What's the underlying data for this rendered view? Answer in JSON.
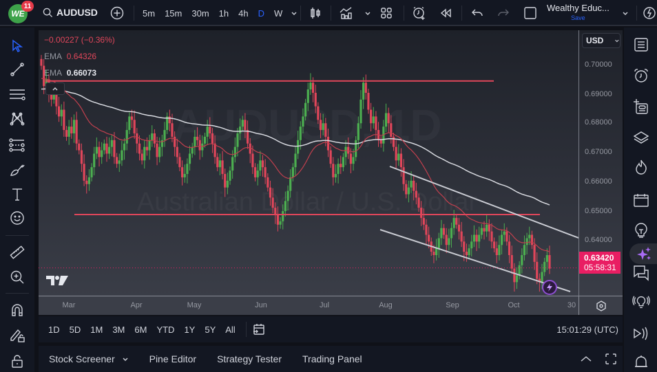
{
  "header": {
    "notification_count": "11",
    "symbol": "AUDUSD",
    "timeframes": [
      "5m",
      "15m",
      "30m",
      "1h",
      "4h",
      "D",
      "W"
    ],
    "active_timeframe": "D",
    "layout_name": "Wealthy Educ...",
    "save_label": "Save"
  },
  "legend": {
    "change": "−0.00227 (−0.36%)",
    "ema1_label": "EMA",
    "ema1_value": "0.64326",
    "ema2_label": "EMA",
    "ema2_value": "0.66073"
  },
  "price_axis": {
    "currency": "USD",
    "labels": [
      "0.70000",
      "0.69000",
      "0.68000",
      "0.67000",
      "0.66000",
      "0.65000",
      "0.64000"
    ],
    "current_price": "0.63420",
    "countdown": "05:58:31"
  },
  "time_axis": {
    "labels": [
      "Mar",
      "Apr",
      "May",
      "Jun",
      "Jul",
      "Aug",
      "Sep",
      "Oct",
      "30"
    ]
  },
  "range_bar": {
    "ranges": [
      "1D",
      "5D",
      "1M",
      "3M",
      "6M",
      "YTD",
      "1Y",
      "5Y",
      "All"
    ],
    "clock": "15:01:29 (UTC)"
  },
  "bottom_bar": {
    "tabs": [
      "Stock Screener",
      "Pine Editor",
      "Strategy Tester",
      "Trading Panel"
    ]
  },
  "watermark": {
    "line1": "AUDUSD, 1D",
    "line2": "Australian Dollar / U.S. Dollar"
  },
  "colors": {
    "up": "#4caf50",
    "down": "#e0465a",
    "ema_fast": "#c2404e",
    "ema_slow": "#d8dae0",
    "level_line": "#e0465a",
    "channel": "#c9cbd2",
    "accent": "#2962ff",
    "price_tag": "#e91e63"
  },
  "chart_data": {
    "type": "candlestick",
    "title": "AUDUSD, 1D",
    "ylim": [
      0.626,
      0.7045
    ],
    "horizontal_levels": [
      0.6895,
      0.65
    ],
    "channel_upper": [
      [
        0.657,
        "Aug"
      ],
      [
        0.641,
        "end"
      ]
    ],
    "channel_lower": [
      [
        0.64,
        "Jul-end"
      ],
      [
        0.626,
        "end"
      ]
    ],
    "ema_fast_last": 0.64326,
    "ema_slow_last": 0.66073,
    "last_close": 0.6342,
    "closes": [
      0.694,
      0.688,
      0.69,
      0.686,
      0.684,
      0.687,
      0.682,
      0.679,
      0.681,
      0.675,
      0.673,
      0.676,
      0.674,
      0.678,
      0.671,
      0.669,
      0.665,
      0.66,
      0.659,
      0.661,
      0.664,
      0.668,
      0.67,
      0.667,
      0.669,
      0.671,
      0.668,
      0.67,
      0.672,
      0.667,
      0.665,
      0.666,
      0.669,
      0.671,
      0.675,
      0.679,
      0.678,
      0.674,
      0.671,
      0.668,
      0.666,
      0.67,
      0.669,
      0.672,
      0.674,
      0.671,
      0.667,
      0.67,
      0.672,
      0.675,
      0.679,
      0.677,
      0.673,
      0.67,
      0.667,
      0.664,
      0.661,
      0.662,
      0.665,
      0.668,
      0.67,
      0.673,
      0.672,
      0.669,
      0.671,
      0.673,
      0.676,
      0.674,
      0.671,
      0.667,
      0.664,
      0.666,
      0.662,
      0.658,
      0.66,
      0.663,
      0.667,
      0.67,
      0.674,
      0.676,
      0.678,
      0.675,
      0.671,
      0.668,
      0.664,
      0.661,
      0.663,
      0.666,
      0.664,
      0.661,
      0.658,
      0.655,
      0.652,
      0.65,
      0.647,
      0.648,
      0.651,
      0.654,
      0.657,
      0.661,
      0.664,
      0.668,
      0.672,
      0.676,
      0.679,
      0.683,
      0.687,
      0.689,
      0.686,
      0.682,
      0.678,
      0.675,
      0.677,
      0.673,
      0.669,
      0.665,
      0.661,
      0.662,
      0.665,
      0.664,
      0.667,
      0.67,
      0.668,
      0.665,
      0.667,
      0.672,
      0.677,
      0.684,
      0.689,
      0.686,
      0.681,
      0.677,
      0.679,
      0.675,
      0.672,
      0.671,
      0.676,
      0.68,
      0.677,
      0.673,
      0.67,
      0.666,
      0.668,
      0.664,
      0.659,
      0.656,
      0.658,
      0.66,
      0.657,
      0.655,
      0.652,
      0.649,
      0.647,
      0.644,
      0.642,
      0.639,
      0.638,
      0.64,
      0.643,
      0.646,
      0.644,
      0.641,
      0.643,
      0.646,
      0.649,
      0.647,
      0.645,
      0.642,
      0.639,
      0.638,
      0.64,
      0.642,
      0.644,
      0.642,
      0.644,
      0.646,
      0.645,
      0.647,
      0.645,
      0.642,
      0.64,
      0.638,
      0.641,
      0.644,
      0.645,
      0.642,
      0.638,
      0.634,
      0.63,
      0.632,
      0.635,
      0.638,
      0.641,
      0.643,
      0.644,
      0.641,
      0.636,
      0.631,
      0.63,
      0.633,
      0.636,
      0.638,
      0.634
    ]
  }
}
